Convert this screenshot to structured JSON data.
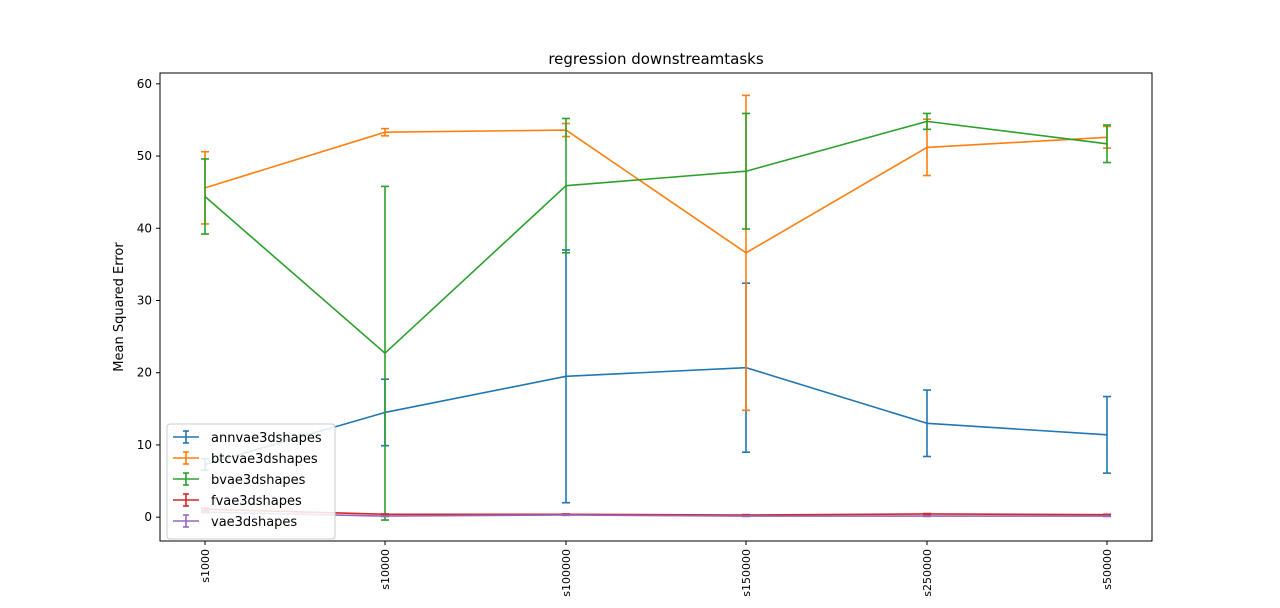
{
  "chart_data": {
    "type": "line",
    "title": "regression downstreamtasks",
    "xlabel": "",
    "ylabel": "Mean Squared Error",
    "ylim": [
      -3.3,
      61.5
    ],
    "yticks": [
      0,
      10,
      20,
      30,
      40,
      50,
      60
    ],
    "categories": [
      "s1000",
      "s10000",
      "s100000",
      "s150000",
      "s250000",
      "s50000"
    ],
    "grid": false,
    "legend_position": "lower-left",
    "series": [
      {
        "name": "annvae3dshapes",
        "color": "#1f77b4",
        "values": [
          7.3,
          14.5,
          19.5,
          20.7,
          13.0,
          11.4
        ],
        "errors": [
          0.8,
          4.6,
          17.5,
          11.7,
          4.6,
          5.3
        ]
      },
      {
        "name": "btcvae3dshapes",
        "color": "#ff7f0e",
        "values": [
          45.6,
          53.3,
          53.6,
          36.6,
          51.2,
          52.6
        ],
        "errors": [
          5.0,
          0.5,
          0.9,
          21.8,
          3.9,
          1.5
        ]
      },
      {
        "name": "bvae3dshapes",
        "color": "#2ca02c",
        "values": [
          44.4,
          22.7,
          45.9,
          47.9,
          54.8,
          51.7
        ],
        "errors": [
          5.2,
          23.1,
          9.3,
          8.0,
          1.1,
          2.6
        ]
      },
      {
        "name": "fvae3dshapes",
        "color": "#d62728",
        "values": [
          1.1,
          0.4,
          0.4,
          0.3,
          0.45,
          0.35
        ],
        "errors": [
          0.15,
          0.05,
          0.05,
          0.05,
          0.05,
          0.05
        ]
      },
      {
        "name": "vae3dshapes",
        "color": "#9467bd",
        "values": [
          0.7,
          0.15,
          0.3,
          0.15,
          0.15,
          0.15
        ],
        "errors": [
          0.1,
          0.05,
          0.05,
          0.05,
          0.05,
          0.05
        ]
      }
    ]
  }
}
